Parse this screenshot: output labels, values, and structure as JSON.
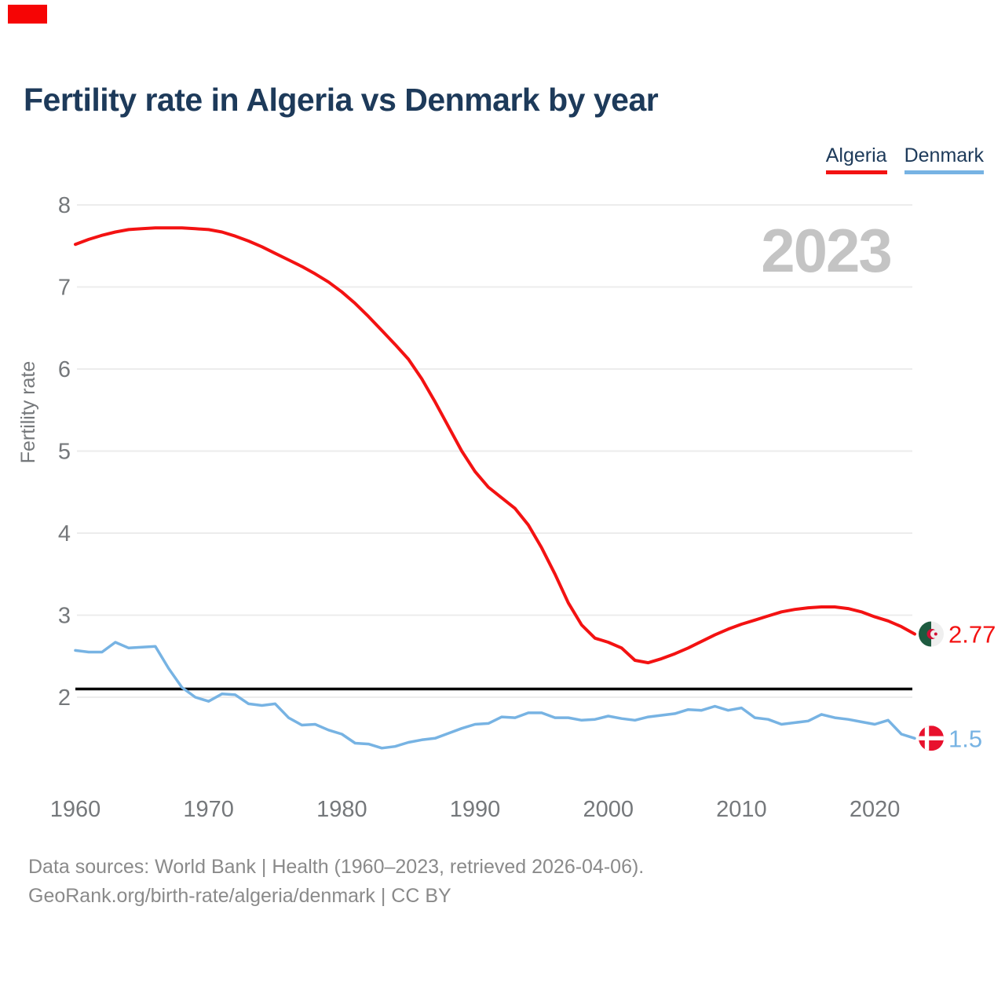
{
  "title": {
    "text": "Fertility rate in Algeria vs Denmark by year"
  },
  "corner_badge": {
    "color": "#f60505"
  },
  "legend": {
    "items": [
      {
        "label": "Algeria",
        "color": "#f31212"
      },
      {
        "label": "Denmark",
        "color": "#77b3e3"
      }
    ]
  },
  "watermark": {
    "text": "2023",
    "color": "#c4c4c4"
  },
  "footer": {
    "line1": "Data sources: World Bank | Health (1960–2023, retrieved 2026-04-06).",
    "line2": "GeoRank.org/birth-rate/algeria/denmark | CC BY"
  },
  "chart_data": {
    "type": "line",
    "title": "Fertility rate in Algeria vs Denmark by year",
    "ylabel": "Fertility rate",
    "xlabel": "",
    "grid": true,
    "legend_position": "top-right",
    "yticks": [
      2,
      3,
      4,
      5,
      6,
      7,
      8
    ],
    "xticks": [
      1960,
      1970,
      1980,
      1990,
      2000,
      2010,
      2020
    ],
    "ylim": [
      1.3,
      8.2
    ],
    "xlim": [
      1960,
      2023
    ],
    "reference_line": {
      "value": 2.1,
      "color": "#000000"
    },
    "years": [
      1960,
      1961,
      1962,
      1963,
      1964,
      1965,
      1966,
      1967,
      1968,
      1969,
      1970,
      1971,
      1972,
      1973,
      1974,
      1975,
      1976,
      1977,
      1978,
      1979,
      1980,
      1981,
      1982,
      1983,
      1984,
      1985,
      1986,
      1987,
      1988,
      1989,
      1990,
      1991,
      1992,
      1993,
      1994,
      1995,
      1996,
      1997,
      1998,
      1999,
      2000,
      2001,
      2002,
      2003,
      2004,
      2005,
      2006,
      2007,
      2008,
      2009,
      2010,
      2011,
      2012,
      2013,
      2014,
      2015,
      2016,
      2017,
      2018,
      2019,
      2020,
      2021,
      2022,
      2023
    ],
    "series": [
      {
        "name": "Algeria",
        "color": "#f31212",
        "end_label": "2.77",
        "end_value": 2.77,
        "flag": "algeria-flag",
        "values": [
          7.52,
          7.58,
          7.63,
          7.67,
          7.7,
          7.71,
          7.72,
          7.72,
          7.72,
          7.71,
          7.7,
          7.67,
          7.62,
          7.56,
          7.49,
          7.41,
          7.33,
          7.25,
          7.16,
          7.06,
          6.94,
          6.8,
          6.64,
          6.47,
          6.3,
          6.12,
          5.88,
          5.6,
          5.3,
          5.0,
          4.75,
          4.56,
          4.43,
          4.3,
          4.1,
          3.82,
          3.5,
          3.15,
          2.88,
          2.72,
          2.67,
          2.6,
          2.45,
          2.42,
          2.47,
          2.53,
          2.6,
          2.68,
          2.76,
          2.83,
          2.89,
          2.94,
          2.99,
          3.04,
          3.07,
          3.09,
          3.1,
          3.1,
          3.08,
          3.04,
          2.98,
          2.93,
          2.86,
          2.77
        ]
      },
      {
        "name": "Denmark",
        "color": "#77b3e3",
        "end_label": "1.5",
        "end_value": 1.5,
        "flag": "denmark-flag",
        "values": [
          2.57,
          2.55,
          2.55,
          2.67,
          2.6,
          2.61,
          2.62,
          2.35,
          2.12,
          2.0,
          1.95,
          2.04,
          2.03,
          1.92,
          1.9,
          1.92,
          1.75,
          1.66,
          1.67,
          1.6,
          1.55,
          1.44,
          1.43,
          1.38,
          1.4,
          1.45,
          1.48,
          1.5,
          1.56,
          1.62,
          1.67,
          1.68,
          1.76,
          1.75,
          1.81,
          1.81,
          1.75,
          1.75,
          1.72,
          1.73,
          1.77,
          1.74,
          1.72,
          1.76,
          1.78,
          1.8,
          1.85,
          1.84,
          1.89,
          1.84,
          1.87,
          1.75,
          1.73,
          1.67,
          1.69,
          1.71,
          1.79,
          1.75,
          1.73,
          1.7,
          1.67,
          1.72,
          1.55,
          1.5
        ]
      }
    ],
    "style": {
      "grid_color": "#ececec",
      "tick_color": "#75787b",
      "title_color": "#1d3a5a"
    }
  }
}
